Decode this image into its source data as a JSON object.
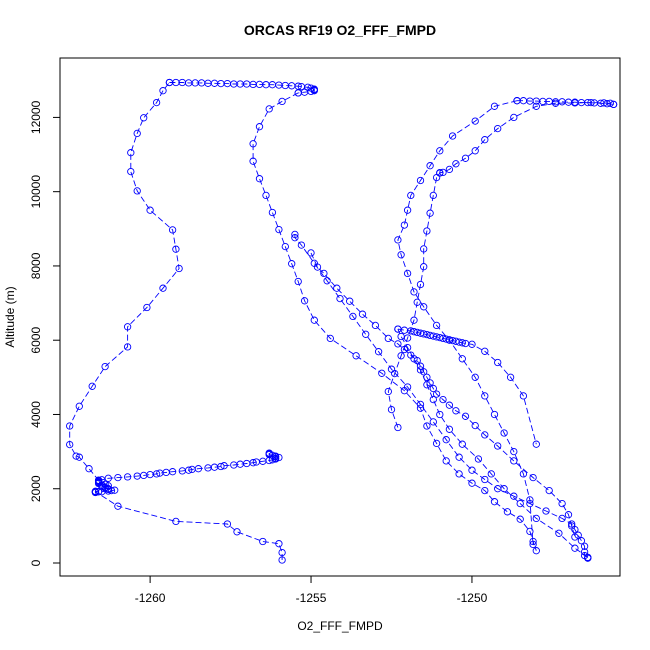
{
  "chart_data": {
    "type": "line",
    "title": "ORCAS RF19 O2_FFF_FMPD",
    "xlabel": "O2_FFF_FMPD",
    "ylabel": "Altitude (m)",
    "xlim": [
      -1262.8,
      -1245.4
    ],
    "ylim": [
      -350,
      13600
    ],
    "xticks": [
      -1260,
      -1255,
      -1250
    ],
    "yticks": [
      0,
      2000,
      4000,
      6000,
      8000,
      10000,
      12000
    ],
    "grid": false,
    "color": "#0000ff",
    "series": [
      {
        "x": [
          -1255.9,
          -1255.9,
          -1256.0,
          -1256.5,
          -1257.3,
          -1257.6,
          -1259.2,
          -1261.0,
          -1261.7,
          -1261.7,
          -1261.7,
          -1261.6,
          -1261.7,
          -1261.6,
          -1261.5,
          -1261.3,
          -1261.2,
          -1261.1,
          -1261.3,
          -1261.3,
          -1261.4,
          -1261.4,
          -1261.5,
          -1261.3,
          -1261.5,
          -1261.4,
          -1261.6,
          -1261.6,
          -1261.6,
          -1261.6,
          -1261.6,
          -1261.5,
          -1261.3,
          -1261.0,
          -1260.7,
          -1260.4,
          -1260.2,
          -1260.0,
          -1259.8,
          -1259.7,
          -1259.5,
          -1259.3,
          -1259.0,
          -1258.8,
          -1258.7,
          -1258.5,
          -1258.2,
          -1258.0,
          -1257.8,
          -1257.7,
          -1257.4,
          -1257.2,
          -1257.0,
          -1256.8,
          -1256.7,
          -1256.5,
          -1256.3,
          -1256.2,
          -1256.1,
          -1256.1,
          -1256.0,
          -1256.1,
          -1256.1,
          -1256.2,
          -1256.3,
          -1256.3,
          -1256.3
        ],
        "y": [
          80,
          280,
          520,
          580,
          840,
          1050,
          1120,
          1530,
          1920,
          1900,
          1910,
          1920,
          1930,
          1920,
          1920,
          1940,
          1950,
          1960,
          1980,
          2000,
          2020,
          2040,
          2060,
          2080,
          2100,
          2120,
          2140,
          2160,
          2180,
          2200,
          2220,
          2240,
          2280,
          2300,
          2320,
          2340,
          2360,
          2380,
          2400,
          2420,
          2440,
          2460,
          2480,
          2500,
          2520,
          2540,
          2560,
          2580,
          2600,
          2620,
          2640,
          2660,
          2680,
          2700,
          2720,
          2740,
          2760,
          2780,
          2800,
          2820,
          2840,
          2860,
          2880,
          2900,
          2920,
          2940,
          2960
        ]
      },
      {
        "x": [
          -1261.6,
          -1261.6,
          -1261.9,
          -1262.2,
          -1262.3,
          -1262.5,
          -1262.5,
          -1262.2,
          -1261.8,
          -1261.4,
          -1260.7,
          -1260.7,
          -1260.1,
          -1259.6,
          -1259.1,
          -1259.2,
          -1259.3,
          -1260.0,
          -1260.4,
          -1260.6,
          -1260.6,
          -1260.4,
          -1260.2,
          -1259.8,
          -1259.6,
          -1259.4
        ],
        "y": [
          2220,
          2230,
          2540,
          2850,
          2880,
          3190,
          3690,
          4220,
          4760,
          5290,
          5820,
          6360,
          6880,
          7400,
          7930,
          8450,
          8970,
          9500,
          10020,
          10540,
          11050,
          11570,
          11990,
          12400,
          12720,
          12940
        ]
      },
      {
        "x": [
          -1259.4,
          -1259.2,
          -1259.0,
          -1258.8,
          -1258.6,
          -1258.4,
          -1258.2,
          -1258.0,
          -1257.8,
          -1257.6,
          -1257.4,
          -1257.2,
          -1257.0,
          -1256.8,
          -1256.6,
          -1256.4,
          -1256.2,
          -1256.0,
          -1255.8,
          -1255.6,
          -1255.4,
          -1255.3,
          -1255.1,
          -1255.0,
          -1254.9,
          -1254.9,
          -1254.9,
          -1255.0,
          -1255.2,
          -1255.4
        ],
        "y": [
          12940,
          12940,
          12940,
          12930,
          12930,
          12930,
          12920,
          12920,
          12910,
          12910,
          12900,
          12900,
          12900,
          12890,
          12890,
          12880,
          12880,
          12870,
          12860,
          12850,
          12840,
          12830,
          12810,
          12790,
          12760,
          12740,
          12720,
          12700,
          12680,
          12660
        ]
      },
      {
        "x": [
          -1255.4,
          -1255.9,
          -1256.3,
          -1256.6,
          -1256.8,
          -1256.8,
          -1256.6,
          -1256.4,
          -1256.2,
          -1256.0,
          -1255.8,
          -1255.6,
          -1255.4,
          -1255.2,
          -1254.9,
          -1254.4,
          -1253.6,
          -1252.8,
          -1252.1,
          -1251.6,
          -1251.4,
          -1251.1,
          -1250.8,
          -1250.4,
          -1250.0,
          -1249.6,
          -1249.3,
          -1248.9,
          -1248.5,
          -1248.2,
          -1248.1,
          -1248.0
        ],
        "y": [
          12660,
          12430,
          12230,
          11750,
          11290,
          10820,
          10350,
          9900,
          9440,
          8980,
          8520,
          8060,
          7580,
          7060,
          6540,
          6050,
          5580,
          5110,
          4640,
          4170,
          3690,
          3220,
          2750,
          2400,
          2150,
          1950,
          1650,
          1380,
          1180,
          850,
          580,
          330
        ]
      },
      {
        "x": [
          -1255.5,
          -1255.5,
          -1255.3,
          -1254.9,
          -1254.5,
          -1254.1,
          -1253.7,
          -1253.3,
          -1252.9,
          -1252.5,
          -1252.0,
          -1251.6,
          -1251.2,
          -1250.8,
          -1250.4,
          -1250.0,
          -1249.6,
          -1249.2,
          -1248.7,
          -1248.2,
          -1247.7,
          -1247.2,
          -1246.9,
          -1246.8,
          -1246.7,
          -1246.6,
          -1246.5,
          -1246.5,
          -1246.5,
          -1246.4,
          -1246.4
        ],
        "y": [
          8850,
          8760,
          8560,
          8070,
          7600,
          7120,
          6640,
          6160,
          5690,
          5220,
          4740,
          4270,
          3800,
          3320,
          2850,
          2500,
          2250,
          2000,
          1800,
          1600,
          1400,
          1200,
          1050,
          900,
          750,
          600,
          450,
          300,
          200,
          150,
          130
        ]
      },
      {
        "x": [
          -1255.0,
          -1254.8,
          -1254.6,
          -1254.2,
          -1253.8,
          -1253.4,
          -1253.0,
          -1252.6,
          -1252.3,
          -1252.1,
          -1251.9,
          -1251.7,
          -1251.6,
          -1251.5,
          -1251.4,
          -1251.3,
          -1251.2,
          -1251.1,
          -1250.9,
          -1250.7,
          -1250.5,
          -1250.2,
          -1249.9,
          -1249.6,
          -1249.2,
          -1248.7,
          -1248.1,
          -1247.6,
          -1247.2,
          -1247.0,
          -1246.9,
          -1246.8
        ],
        "y": [
          8350,
          7970,
          7800,
          7400,
          7050,
          6700,
          6400,
          6050,
          5900,
          5750,
          5600,
          5450,
          5300,
          5150,
          5000,
          4850,
          4700,
          4550,
          4400,
          4250,
          4100,
          3950,
          3700,
          3450,
          3150,
          2750,
          2300,
          1950,
          1600,
          1300,
          1000,
          700
        ]
      },
      {
        "x": [
          -1246.4,
          -1246.8,
          -1247.3,
          -1248.0,
          -1248.5,
          -1249.0,
          -1249.4,
          -1249.8,
          -1250.3,
          -1250.7,
          -1251.0,
          -1251.2,
          -1251.4,
          -1251.6,
          -1251.8,
          -1252.0,
          -1252.2,
          -1252.3
        ],
        "y": [
          150,
          400,
          800,
          1200,
          1600,
          2000,
          2400,
          2800,
          3200,
          3600,
          4000,
          4400,
          4800,
          5200,
          5500,
          5800,
          6100,
          6300
        ]
      },
      {
        "x": [
          -1252.3,
          -1252.1,
          -1251.9,
          -1251.8,
          -1251.7,
          -1251.6,
          -1251.5,
          -1251.4,
          -1251.3,
          -1251.2,
          -1251.1,
          -1251.0,
          -1250.9,
          -1250.8,
          -1250.7,
          -1250.6,
          -1250.5,
          -1250.4,
          -1250.3,
          -1250.2,
          -1250.0,
          -1249.6,
          -1249.2,
          -1248.8,
          -1248.4,
          -1248.0
        ],
        "y": [
          6300,
          6270,
          6250,
          6230,
          6210,
          6190,
          6170,
          6150,
          6130,
          6110,
          6090,
          6070,
          6050,
          6030,
          6010,
          5990,
          5970,
          5950,
          5930,
          5910,
          5890,
          5700,
          5400,
          5000,
          4500,
          3200
        ]
      },
      {
        "x": [
          -1252.3,
          -1252.5,
          -1252.6,
          -1252.4,
          -1252.2,
          -1252.0,
          -1251.8,
          -1251.7,
          -1251.6,
          -1251.5,
          -1251.5,
          -1251.4,
          -1251.3,
          -1251.2,
          -1251.1,
          -1251.0,
          -1251.0,
          -1250.9,
          -1250.7,
          -1250.5,
          -1250.2,
          -1249.9,
          -1249.6,
          -1249.2,
          -1248.7,
          -1248.0,
          -1247.4,
          -1246.8,
          -1246.3,
          -1245.9,
          -1245.7,
          -1245.6
        ],
        "y": [
          3650,
          4130,
          4620,
          5100,
          5580,
          6060,
          6540,
          7020,
          7500,
          7980,
          8460,
          8940,
          9420,
          9900,
          10380,
          10500,
          10510,
          10520,
          10600,
          10750,
          10900,
          11100,
          11400,
          11700,
          12000,
          12300,
          12380,
          12390,
          12400,
          12390,
          12380,
          12350
        ]
      },
      {
        "x": [
          -1248.6,
          -1248.4,
          -1248.2,
          -1248.0,
          -1247.8,
          -1247.6,
          -1247.4,
          -1247.2,
          -1247.0,
          -1246.8,
          -1246.6,
          -1246.4,
          -1246.2,
          -1246.0,
          -1245.8,
          -1245.6
        ],
        "y": [
          12450,
          12450,
          12440,
          12440,
          12430,
          12430,
          12420,
          12420,
          12410,
          12410,
          12400,
          12400,
          12390,
          12380,
          12370,
          12350
        ]
      },
      {
        "x": [
          -1248.6,
          -1249.3,
          -1249.9,
          -1250.6,
          -1251.0,
          -1251.3,
          -1251.6,
          -1251.9,
          -1252.0,
          -1252.1,
          -1252.3,
          -1252.2,
          -1252.0,
          -1251.8,
          -1251.5,
          -1251.1,
          -1250.7,
          -1250.3,
          -1249.9,
          -1249.6,
          -1249.3,
          -1249.0,
          -1248.7,
          -1248.4,
          -1248.2,
          -1248.1
        ],
        "y": [
          12450,
          12300,
          11900,
          11500,
          11100,
          10700,
          10300,
          9900,
          9500,
          9100,
          8700,
          8300,
          7800,
          7300,
          6900,
          6400,
          6000,
          5500,
          5000,
          4500,
          4000,
          3500,
          3000,
          2400,
          1700,
          500
        ]
      }
    ]
  }
}
